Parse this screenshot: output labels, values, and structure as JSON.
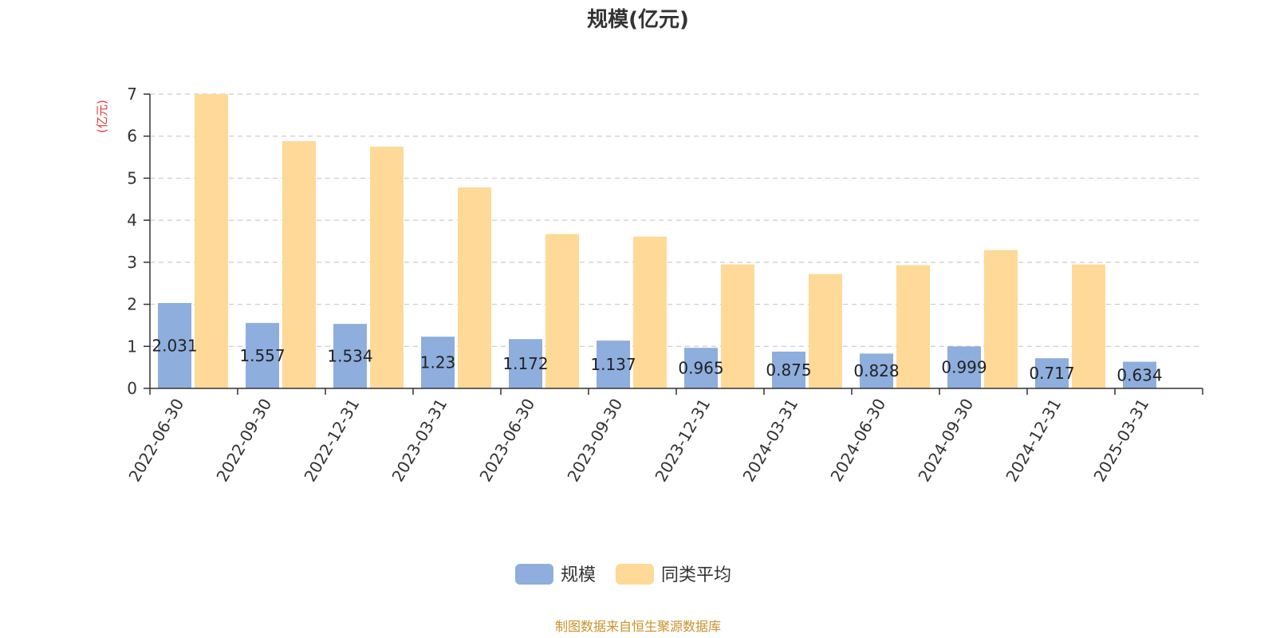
{
  "chart_data": {
    "type": "bar",
    "title": "规模(亿元)",
    "ylabel": "(亿元)",
    "ylim": [
      0,
      7
    ],
    "yticks": [
      0,
      1,
      2,
      3,
      4,
      5,
      6,
      7
    ],
    "grid": true,
    "legend_position": "bottom-center",
    "categories": [
      "2022-06-30",
      "2022-09-30",
      "2022-12-31",
      "2023-03-31",
      "2023-06-30",
      "2023-09-30",
      "2023-12-31",
      "2024-03-31",
      "2024-06-30",
      "2024-09-30",
      "2024-12-31",
      "2025-03-31"
    ],
    "series": [
      {
        "name": "规模",
        "color": "#8eaedd",
        "values": [
          2.031,
          1.557,
          1.534,
          1.23,
          1.172,
          1.137,
          0.965,
          0.875,
          0.828,
          0.999,
          0.717,
          0.634
        ],
        "labels": [
          "2.031",
          "1.557",
          "1.534",
          "1.23",
          "1.172",
          "1.137",
          "0.965",
          "0.875",
          "0.828",
          "0.999",
          "0.717",
          "0.634"
        ]
      },
      {
        "name": "同类平均",
        "color": "#ffd997",
        "values": [
          7.0,
          5.88,
          5.75,
          4.78,
          3.67,
          3.61,
          2.95,
          2.72,
          2.93,
          3.29,
          2.95,
          null
        ]
      }
    ]
  },
  "source_note": "制图数据来自恒生聚源数据库"
}
